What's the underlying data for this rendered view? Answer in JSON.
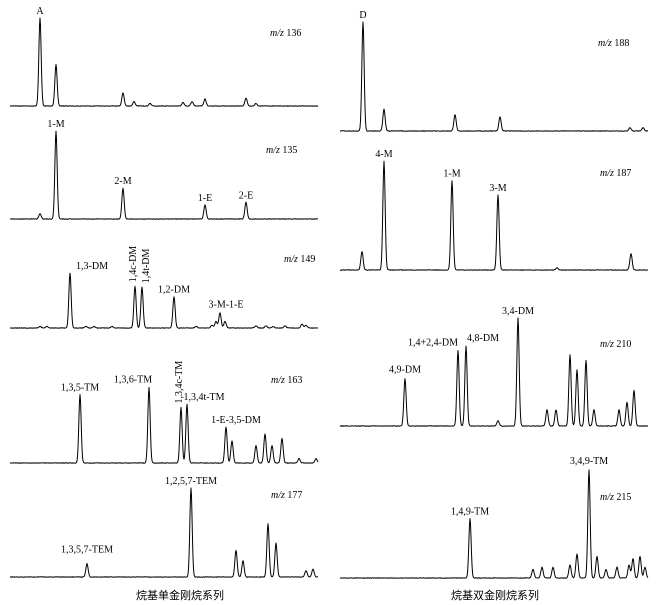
{
  "chart_data": [
    {
      "type": "line",
      "column": "left",
      "mz": "136",
      "peaks": [
        {
          "x": 40,
          "h": 1.0,
          "label": "A"
        },
        {
          "x": 56,
          "h": 0.47
        },
        {
          "x": 123,
          "h": 0.15
        },
        {
          "x": 134,
          "h": 0.05
        },
        {
          "x": 150,
          "h": 0.03
        },
        {
          "x": 183,
          "h": 0.04
        },
        {
          "x": 192,
          "h": 0.05
        },
        {
          "x": 205,
          "h": 0.08
        },
        {
          "x": 246,
          "h": 0.09
        },
        {
          "x": 256,
          "h": 0.03
        }
      ]
    },
    {
      "type": "line",
      "column": "left",
      "mz": "135",
      "peaks": [
        {
          "x": 40,
          "h": 0.06
        },
        {
          "x": 56,
          "h": 1.0,
          "label": "1-M"
        },
        {
          "x": 123,
          "h": 0.35,
          "label": "2-M"
        },
        {
          "x": 205,
          "h": 0.16,
          "label": "1-E"
        },
        {
          "x": 246,
          "h": 0.19,
          "label": "2-E"
        }
      ]
    },
    {
      "type": "line",
      "column": "left",
      "mz": "149",
      "peaks": [
        {
          "x": 40,
          "h": 0.03
        },
        {
          "x": 47,
          "h": 0.03
        },
        {
          "x": 70,
          "h": 1.0,
          "label": "1,3-DM"
        },
        {
          "x": 86,
          "h": 0.03
        },
        {
          "x": 94,
          "h": 0.03
        },
        {
          "x": 112,
          "h": 0.03
        },
        {
          "x": 135,
          "h": 0.76,
          "label": "1,4c-DM"
        },
        {
          "x": 142,
          "h": 0.74,
          "label": "1,4t-DM"
        },
        {
          "x": 174,
          "h": 0.57,
          "label": "1,2-DM"
        },
        {
          "x": 196,
          "h": 0.03
        },
        {
          "x": 212,
          "h": 0.05
        },
        {
          "x": 216,
          "h": 0.12
        },
        {
          "x": 220,
          "h": 0.28,
          "label": "3-M-1-E"
        },
        {
          "x": 225,
          "h": 0.12
        },
        {
          "x": 256,
          "h": 0.04
        },
        {
          "x": 266,
          "h": 0.04
        },
        {
          "x": 273,
          "h": 0.03
        },
        {
          "x": 285,
          "h": 0.04
        },
        {
          "x": 302,
          "h": 0.07
        },
        {
          "x": 306,
          "h": 0.05
        }
      ]
    },
    {
      "type": "line",
      "column": "left",
      "mz": "163",
      "peaks": [
        {
          "x": 80,
          "h": 0.78,
          "label": "1,3,5-TM"
        },
        {
          "x": 149,
          "h": 0.86,
          "label": "1,3,6-TM"
        },
        {
          "x": 181,
          "h": 0.63,
          "label": "1,3,4c-TM"
        },
        {
          "x": 187,
          "h": 0.67,
          "label": "1,3,4t-TM"
        },
        {
          "x": 226,
          "h": 0.41,
          "label": "1-E-3,5-DM"
        },
        {
          "x": 232,
          "h": 0.25
        },
        {
          "x": 256,
          "h": 0.2
        },
        {
          "x": 265,
          "h": 0.33
        },
        {
          "x": 272,
          "h": 0.2
        },
        {
          "x": 282,
          "h": 0.28
        },
        {
          "x": 299,
          "h": 0.05
        },
        {
          "x": 316,
          "h": 0.05
        }
      ]
    },
    {
      "type": "line",
      "column": "left",
      "mz": "177",
      "peaks": [
        {
          "x": 87,
          "h": 0.15,
          "label": "1,3,5,7-TEM"
        },
        {
          "x": 191,
          "h": 1.0,
          "label": "1,2,5,7-TEM"
        },
        {
          "x": 236,
          "h": 0.3
        },
        {
          "x": 243,
          "h": 0.18
        },
        {
          "x": 268,
          "h": 0.6
        },
        {
          "x": 276,
          "h": 0.38
        },
        {
          "x": 306,
          "h": 0.07
        },
        {
          "x": 313,
          "h": 0.09
        }
      ]
    },
    {
      "type": "line",
      "column": "right",
      "mz": "188",
      "peaks": [
        {
          "x": 363,
          "h": 1.0,
          "label": "D"
        },
        {
          "x": 384,
          "h": 0.2
        },
        {
          "x": 455,
          "h": 0.15
        },
        {
          "x": 500,
          "h": 0.13
        },
        {
          "x": 630,
          "h": 0.03
        },
        {
          "x": 643,
          "h": 0.03
        }
      ]
    },
    {
      "type": "line",
      "column": "right",
      "mz": "187",
      "peaks": [
        {
          "x": 362,
          "h": 0.17
        },
        {
          "x": 384,
          "h": 1.0,
          "label": "4-M"
        },
        {
          "x": 452,
          "h": 0.82,
          "label": "1-M"
        },
        {
          "x": 498,
          "h": 0.69,
          "label": "3-M"
        },
        {
          "x": 557,
          "h": 0.02
        },
        {
          "x": 631,
          "h": 0.15
        }
      ]
    },
    {
      "type": "line",
      "column": "right",
      "mz": "210",
      "peaks": [
        {
          "x": 405,
          "h": 0.44,
          "label": "4,9-DM"
        },
        {
          "x": 458,
          "h": 0.7,
          "label": "1,4+2,4-DM"
        },
        {
          "x": 466,
          "h": 0.74,
          "label": "4,8-DM"
        },
        {
          "x": 498,
          "h": 0.05
        },
        {
          "x": 518,
          "h": 1.0,
          "label": "3,4-DM"
        },
        {
          "x": 547,
          "h": 0.15
        },
        {
          "x": 556,
          "h": 0.15
        },
        {
          "x": 570,
          "h": 0.66
        },
        {
          "x": 577,
          "h": 0.52
        },
        {
          "x": 586,
          "h": 0.61
        },
        {
          "x": 594,
          "h": 0.15
        },
        {
          "x": 619,
          "h": 0.15
        },
        {
          "x": 627,
          "h": 0.22
        },
        {
          "x": 634,
          "h": 0.33
        }
      ]
    },
    {
      "type": "line",
      "column": "right",
      "mz": "215",
      "peaks": [
        {
          "x": 470,
          "h": 0.55,
          "label": "1,4,9-TM"
        },
        {
          "x": 533,
          "h": 0.08
        },
        {
          "x": 542,
          "h": 0.1
        },
        {
          "x": 553,
          "h": 0.1
        },
        {
          "x": 570,
          "h": 0.12
        },
        {
          "x": 577,
          "h": 0.22
        },
        {
          "x": 589,
          "h": 1.0,
          "label": "3,4,9-TM"
        },
        {
          "x": 597,
          "h": 0.2
        },
        {
          "x": 606,
          "h": 0.08
        },
        {
          "x": 617,
          "h": 0.1
        },
        {
          "x": 629,
          "h": 0.12
        },
        {
          "x": 633,
          "h": 0.18
        },
        {
          "x": 640,
          "h": 0.2
        },
        {
          "x": 645,
          "h": 0.1
        }
      ]
    }
  ],
  "captions": {
    "left": "烷基单金刚烷系列",
    "right": "烷基双金刚烷系列"
  },
  "mz_prefix": "m/z"
}
